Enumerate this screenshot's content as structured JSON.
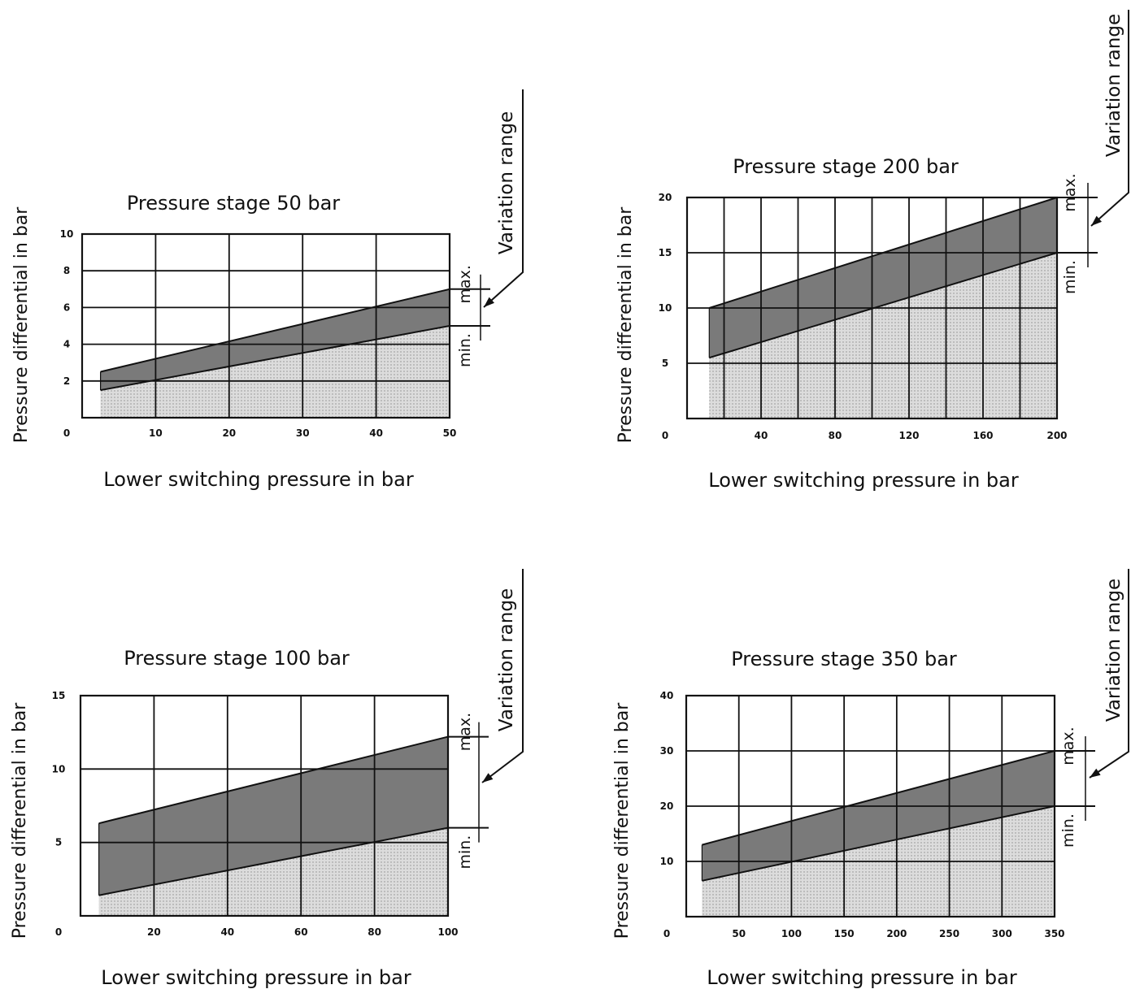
{
  "chart_data": [
    {
      "type": "area",
      "title": "Pressure stage 50 bar",
      "xlabel": "Lower switching pressure in bar",
      "ylabel": "Pressure differential in bar",
      "xlim": [
        0,
        50
      ],
      "ylim": [
        0,
        10
      ],
      "xticks": [
        "0",
        "10",
        "20",
        "30",
        "40",
        "50"
      ],
      "yticks": [
        "2",
        "4",
        "6",
        "8",
        "10"
      ],
      "grid": true,
      "series": [
        {
          "name": "max.",
          "x": [
            2.5,
            50
          ],
          "y": [
            2.5,
            7
          ]
        },
        {
          "name": "min.",
          "x": [
            2.5,
            50
          ],
          "y": [
            1.5,
            5
          ]
        }
      ],
      "annotation": "Variation range"
    },
    {
      "type": "area",
      "title": "Pressure stage 200 bar",
      "xlabel": "Lower switching pressure in bar",
      "ylabel": "Pressure differential in bar",
      "xlim": [
        0,
        200
      ],
      "ylim": [
        0,
        20
      ],
      "xticks": [
        "0",
        "40",
        "80",
        "120",
        "160",
        "200"
      ],
      "yticks": [
        "5",
        "10",
        "15",
        "20"
      ],
      "grid": true,
      "series": [
        {
          "name": "max.",
          "x": [
            12,
            200
          ],
          "y": [
            10,
            20
          ]
        },
        {
          "name": "min.",
          "x": [
            12,
            200
          ],
          "y": [
            5.5,
            15
          ]
        }
      ],
      "annotation": "Variation range"
    },
    {
      "type": "area",
      "title": "Pressure stage 100 bar",
      "xlabel": "Lower switching pressure in bar",
      "ylabel": "Pressure differential in bar",
      "xlim": [
        0,
        100
      ],
      "ylim": [
        0,
        15
      ],
      "xticks": [
        "0",
        "20",
        "40",
        "60",
        "80",
        "100"
      ],
      "yticks": [
        "5",
        "10",
        "15"
      ],
      "grid": true,
      "series": [
        {
          "name": "max.",
          "x": [
            5,
            100
          ],
          "y": [
            6.3,
            12.2
          ]
        },
        {
          "name": "min.",
          "x": [
            5,
            100
          ],
          "y": [
            1.4,
            6
          ]
        }
      ],
      "annotation": "Variation range"
    },
    {
      "type": "area",
      "title": "Pressure stage 350 bar",
      "xlabel": "Lower switching pressure in bar",
      "ylabel": "Pressure differential in bar",
      "xlim": [
        0,
        350
      ],
      "ylim": [
        0,
        40
      ],
      "xticks": [
        "0",
        "50",
        "100",
        "150",
        "200",
        "250",
        "300",
        "350"
      ],
      "yticks": [
        "10",
        "20",
        "30",
        "40"
      ],
      "grid": true,
      "series": [
        {
          "name": "max.",
          "x": [
            15,
            350
          ],
          "y": [
            13,
            30
          ]
        },
        {
          "name": "min.",
          "x": [
            15,
            350
          ],
          "y": [
            6.5,
            20
          ]
        }
      ],
      "annotation": "Variation range"
    }
  ],
  "colors": {
    "band": "#7a7a7a",
    "below": "#dcdcdc",
    "dots": "#8c8c8c",
    "lines": "#111111"
  }
}
